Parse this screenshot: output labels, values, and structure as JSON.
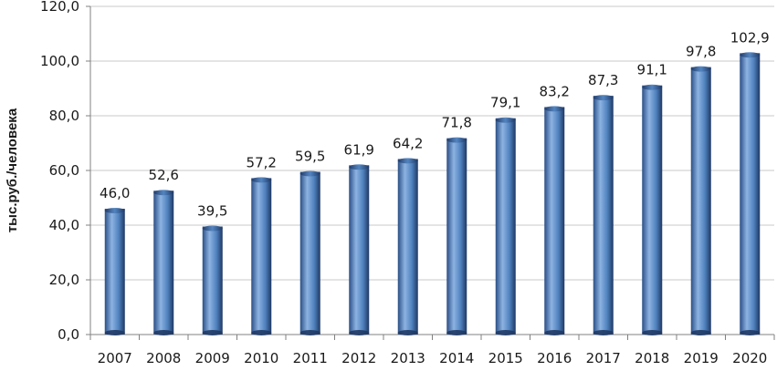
{
  "chart_data": {
    "type": "bar",
    "title": "",
    "xlabel": "",
    "ylabel": "тыс.руб./человека",
    "categories": [
      "2007",
      "2008",
      "2009",
      "2010",
      "2011",
      "2012",
      "2013",
      "2014",
      "2015",
      "2016",
      "2017",
      "2018",
      "2019",
      "2020"
    ],
    "values": [
      46.0,
      52.6,
      39.5,
      57.2,
      59.5,
      61.9,
      64.2,
      71.8,
      79.1,
      83.2,
      87.3,
      91.1,
      97.8,
      102.9
    ],
    "value_labels": [
      "46,0",
      "52,6",
      "39,5",
      "57,2",
      "59,5",
      "61,9",
      "64,2",
      "71,8",
      "79,1",
      "83,2",
      "87,3",
      "91,1",
      "97,8",
      "102,9"
    ],
    "ylim": [
      0,
      120
    ],
    "y_ticks": [
      0,
      20,
      40,
      60,
      80,
      100,
      120
    ],
    "y_tick_labels": [
      "0,0",
      "20,0",
      "40,0",
      "60,0",
      "80,0",
      "100,0",
      "120,0"
    ],
    "grid": true,
    "legend": "none",
    "colors": {
      "bar_light": "#8db3e2",
      "bar_mid": "#4f81bd",
      "bar_dark": "#1f3864",
      "grid": "#c8c8c8",
      "axis": "#808080"
    }
  }
}
